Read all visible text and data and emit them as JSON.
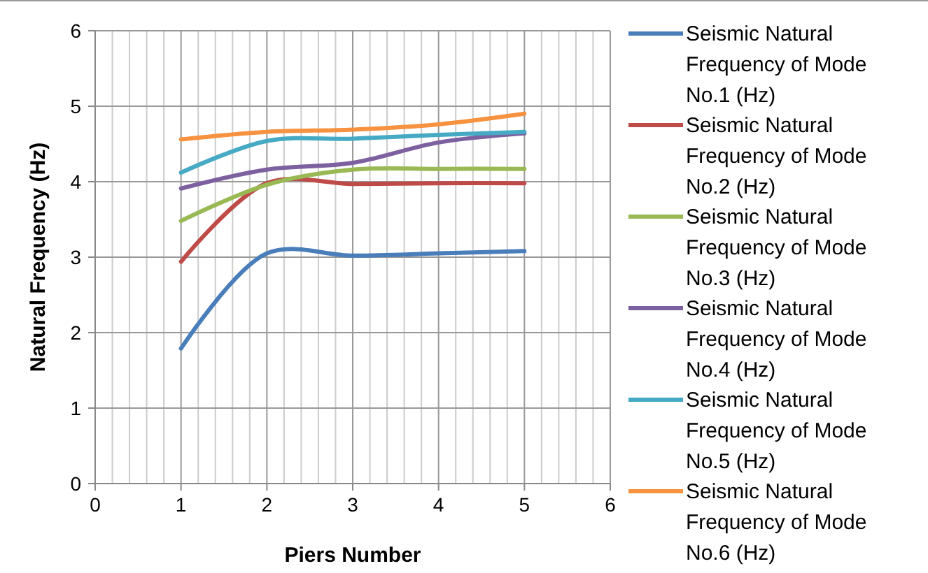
{
  "chart_data": {
    "type": "line",
    "xlabel": "Piers Number",
    "ylabel": "Natural Frequency (Hz)",
    "x": [
      1,
      2,
      3,
      4,
      5
    ],
    "series": [
      {
        "name": "Seismic Natural Frequency of Mode No.1 (Hz)",
        "color": "#4a7ebb",
        "values": [
          1.79,
          3.05,
          3.02,
          3.05,
          3.08
        ]
      },
      {
        "name": "Seismic Natural Frequency of Mode No.2 (Hz)",
        "color": "#be4b48",
        "values": [
          2.94,
          3.98,
          3.97,
          3.98,
          3.98
        ]
      },
      {
        "name": "Seismic Natural Frequency of Mode No.3 (Hz)",
        "color": "#98b954",
        "values": [
          3.48,
          3.96,
          4.16,
          4.17,
          4.17
        ]
      },
      {
        "name": "Seismic Natural Frequency of Mode No.4 (Hz)",
        "color": "#7d60a0",
        "values": [
          3.91,
          4.16,
          4.25,
          4.52,
          4.64
        ]
      },
      {
        "name": "Seismic Natural Frequency of Mode No.5 (Hz)",
        "color": "#46aac5",
        "values": [
          4.12,
          4.54,
          4.57,
          4.62,
          4.66
        ]
      },
      {
        "name": "Seismic Natural Frequency of Mode No.6 (Hz)",
        "color": "#f69240",
        "values": [
          4.56,
          4.66,
          4.69,
          4.76,
          4.9
        ]
      }
    ],
    "xlim": [
      0,
      6
    ],
    "xticks": [
      0,
      1,
      2,
      3,
      4,
      5,
      6
    ],
    "ylim": [
      0,
      6
    ],
    "yticks": [
      0,
      1,
      2,
      3,
      4,
      5,
      6
    ],
    "grid": true,
    "legend": "right",
    "marker": "none",
    "line_style": "solid"
  }
}
